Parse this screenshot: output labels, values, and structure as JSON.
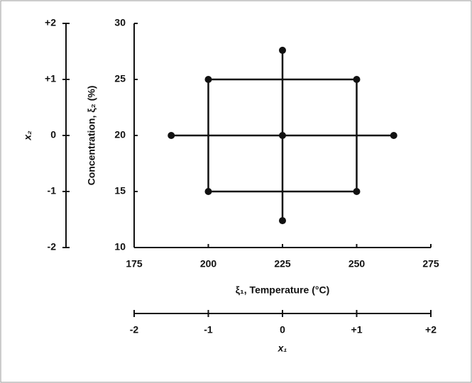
{
  "chart_data": {
    "type": "scatter",
    "x_label": "ξ₁, Temperature (°C)",
    "y_label": "Concentration, ξ₂ (%)",
    "x": [
      200,
      250,
      250,
      200,
      225,
      187.5,
      262.5,
      225,
      225
    ],
    "y": [
      15,
      15,
      25,
      25,
      20,
      20,
      20,
      27.6,
      12.4
    ],
    "color": "#111111",
    "xlim": [
      175,
      275
    ],
    "xticks": [
      175,
      200,
      225,
      250,
      275
    ],
    "ylim": [
      10,
      30
    ],
    "yticks": [
      10,
      15,
      20,
      25,
      30
    ],
    "coded_x_axis": {
      "label": "x₁",
      "lim": [
        -2,
        2
      ],
      "ticks": [
        -2,
        -1,
        0,
        {
          "value": 1,
          "label": "+1"
        },
        {
          "value": 2,
          "label": "+2"
        }
      ]
    },
    "coded_y_axis": {
      "label": "x₂",
      "lim": [
        -2,
        2
      ],
      "ticks": [
        -2,
        -1,
        0,
        {
          "value": 1,
          "label": "+1"
        },
        {
          "value": 2,
          "label": "+2"
        }
      ]
    }
  }
}
